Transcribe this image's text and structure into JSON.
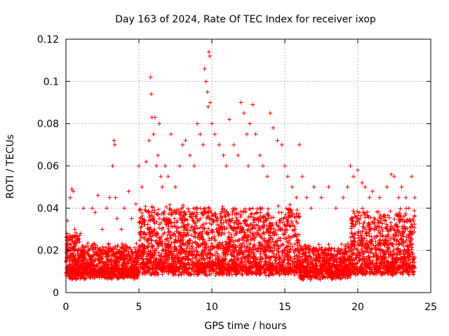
{
  "chart_data": {
    "type": "scatter",
    "title": "Day 163 of 2024, Rate Of TEC Index for receiver ixop",
    "xlabel": "GPS time / hours",
    "ylabel": "ROTI / TECUs",
    "xlim": [
      0,
      25
    ],
    "ylim": [
      0,
      0.12
    ],
    "xticks": [
      0,
      5,
      10,
      15,
      20,
      25
    ],
    "yticks": [
      0,
      0.02,
      0.04,
      0.06,
      0.08,
      0.1,
      0.12
    ],
    "ytick_labels": [
      "0",
      "0.02",
      "0.04",
      "0.06",
      "0.08",
      "0.1",
      "0.12"
    ],
    "grid": true,
    "marker": "+",
    "color": "#ff0000",
    "series": [
      {
        "name": "ROTI",
        "x": [
          0.1,
          0.2,
          0.3,
          0.4,
          0.5,
          0.6,
          0.8,
          1.0,
          1.2,
          1.5,
          1.8,
          2.0,
          2.2,
          2.5,
          2.8,
          3.0,
          3.2,
          3.3,
          3.35,
          3.4,
          3.5,
          3.8,
          4.0,
          4.3,
          4.5,
          4.8,
          5.0,
          5.2,
          5.5,
          5.7,
          5.8,
          5.85,
          5.9,
          6.0,
          6.1,
          6.2,
          6.3,
          6.4,
          6.5,
          6.6,
          6.8,
          7.0,
          7.2,
          7.5,
          7.8,
          8.0,
          8.2,
          8.5,
          8.8,
          9.0,
          9.2,
          9.4,
          9.5,
          9.6,
          9.7,
          9.75,
          9.8,
          9.85,
          9.9,
          10.0,
          10.2,
          10.5,
          10.8,
          11.0,
          11.2,
          11.5,
          11.8,
          12.0,
          12.2,
          12.4,
          12.5,
          12.6,
          12.8,
          13.0,
          13.3,
          13.5,
          13.8,
          14.0,
          14.2,
          14.5,
          14.8,
          15.0,
          15.2,
          15.5,
          15.8,
          16.0,
          16.2,
          16.5,
          16.8,
          17.0,
          17.5,
          18.0,
          18.5,
          19.0,
          19.3,
          19.5,
          19.7,
          20.0,
          20.3,
          20.5,
          20.8,
          21.0,
          21.5,
          22.0,
          22.3,
          22.5,
          22.8,
          23.0,
          23.3,
          23.5,
          23.7,
          23.9
        ],
        "y": [
          0.034,
          0.025,
          0.045,
          0.049,
          0.048,
          0.03,
          0.025,
          0.028,
          0.04,
          0.022,
          0.04,
          0.038,
          0.046,
          0.03,
          0.04,
          0.045,
          0.06,
          0.072,
          0.07,
          0.045,
          0.035,
          0.03,
          0.04,
          0.048,
          0.035,
          0.042,
          0.06,
          0.05,
          0.062,
          0.072,
          0.102,
          0.094,
          0.083,
          0.075,
          0.083,
          0.06,
          0.065,
          0.08,
          0.055,
          0.05,
          0.06,
          0.055,
          0.075,
          0.05,
          0.06,
          0.07,
          0.072,
          0.065,
          0.06,
          0.08,
          0.075,
          0.07,
          0.106,
          0.1,
          0.095,
          0.088,
          0.114,
          0.112,
          0.09,
          0.08,
          0.075,
          0.07,
          0.065,
          0.06,
          0.082,
          0.07,
          0.065,
          0.09,
          0.085,
          0.075,
          0.06,
          0.08,
          0.089,
          0.075,
          0.065,
          0.06,
          0.055,
          0.085,
          0.078,
          0.072,
          0.07,
          0.06,
          0.055,
          0.05,
          0.045,
          0.07,
          0.055,
          0.045,
          0.04,
          0.05,
          0.045,
          0.05,
          0.04,
          0.045,
          0.05,
          0.06,
          0.055,
          0.058,
          0.052,
          0.05,
          0.045,
          0.048,
          0.045,
          0.05,
          0.056,
          0.055,
          0.045,
          0.05,
          0.045,
          0.04,
          0.055,
          0.045
        ]
      }
    ]
  }
}
